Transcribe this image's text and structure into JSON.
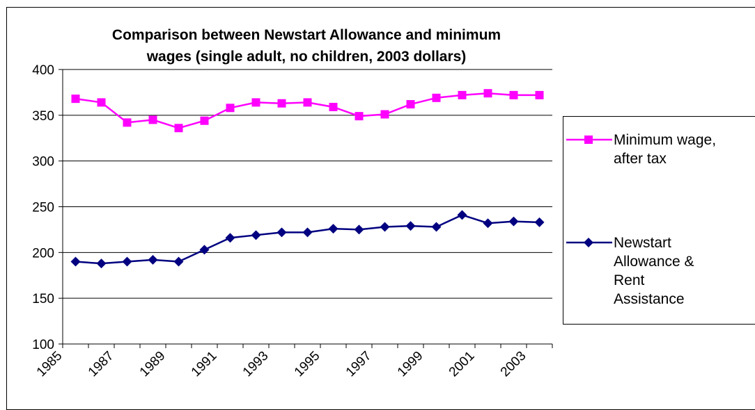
{
  "chart_data": {
    "type": "line",
    "title_lines": [
      "Comparison between Newstart Allowance and minimum",
      "wages (single adult, no children, 2003 dollars)"
    ],
    "xlabel": "",
    "ylabel": "",
    "ylim": [
      100,
      400
    ],
    "y_ticks": [
      "100",
      "150",
      "200",
      "250",
      "300",
      "350",
      "400"
    ],
    "x_tick_labels": [
      "1985",
      "1987",
      "1989",
      "1991",
      "1993",
      "1995",
      "1997",
      "1999",
      "2001",
      "2003"
    ],
    "x": [
      1985.5,
      1986.5,
      1987.5,
      1988.5,
      1989.5,
      1990.5,
      1991.5,
      1992.5,
      1993.5,
      1994.5,
      1995.5,
      1996.5,
      1997.5,
      1998.5,
      1999.5,
      2000.5,
      2001.5,
      2002.5,
      2003.5
    ],
    "grid": "horizontal",
    "legend_position": "right",
    "series": [
      {
        "name_lines": [
          "Minimum wage,",
          "after tax"
        ],
        "color": "#ff00ff",
        "marker": "square",
        "values": [
          368,
          364,
          342,
          345,
          336,
          344,
          358,
          364,
          363,
          364,
          359,
          349,
          351,
          362,
          369,
          372,
          374,
          372,
          372
        ]
      },
      {
        "name_lines": [
          "Newstart",
          "Allowance &",
          "Rent",
          "Assistance"
        ],
        "color": "#000080",
        "marker": "diamond",
        "values": [
          190,
          188,
          190,
          192,
          190,
          203,
          216,
          219,
          222,
          222,
          226,
          225,
          228,
          229,
          228,
          241,
          232,
          234,
          233
        ]
      }
    ]
  }
}
